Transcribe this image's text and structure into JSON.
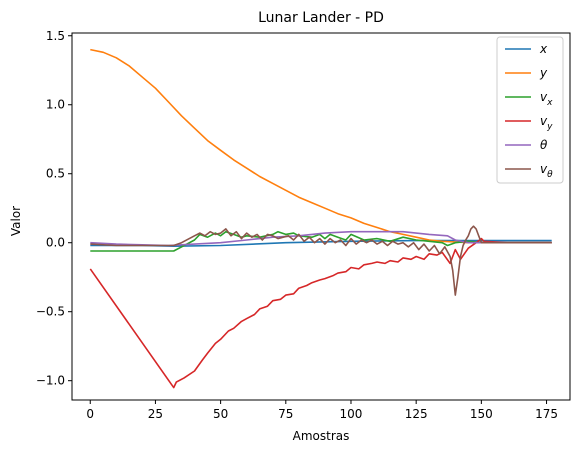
{
  "chart_data": {
    "type": "line",
    "title": "Lunar Lander - PD",
    "xlabel": "Amostras",
    "ylabel": "Valor",
    "xlim": [
      -7,
      184
    ],
    "ylim": [
      -1.14,
      1.52
    ],
    "xticks": [
      0,
      25,
      50,
      75,
      100,
      125,
      150,
      175
    ],
    "yticks": [
      -1.0,
      -0.5,
      0.0,
      0.5,
      1.0,
      1.5
    ],
    "xtick_labels": [
      "0",
      "25",
      "50",
      "75",
      "100",
      "125",
      "150",
      "175"
    ],
    "ytick_labels": [
      "−1.0",
      "−0.5",
      "0.0",
      "0.5",
      "1.0",
      "1.5"
    ],
    "grid": false,
    "legend_position": "top-right",
    "series": [
      {
        "name": "x",
        "color": "#1f77b4",
        "x": [
          0,
          10,
          20,
          32,
          50,
          75,
          100,
          125,
          150,
          177
        ],
        "y": [
          -0.02,
          -0.02,
          -0.02,
          -0.025,
          -0.02,
          0.0,
          0.01,
          0.015,
          0.015,
          0.015
        ]
      },
      {
        "name": "y",
        "color": "#ff7f0e",
        "x": [
          0,
          5,
          10,
          15,
          20,
          25,
          30,
          35,
          40,
          45,
          50,
          55,
          60,
          65,
          70,
          75,
          80,
          85,
          90,
          95,
          100,
          105,
          110,
          115,
          120,
          125,
          130,
          135,
          140,
          145,
          150,
          160,
          170,
          177
        ],
        "y": [
          1.4,
          1.38,
          1.34,
          1.28,
          1.2,
          1.12,
          1.02,
          0.92,
          0.83,
          0.74,
          0.67,
          0.6,
          0.54,
          0.48,
          0.43,
          0.38,
          0.33,
          0.29,
          0.25,
          0.21,
          0.18,
          0.14,
          0.11,
          0.08,
          0.06,
          0.04,
          0.02,
          0.01,
          0.005,
          0.0,
          0.0,
          0.0,
          0.0,
          0.0
        ]
      },
      {
        "name": "v_x",
        "color": "#2ca02c",
        "x": [
          0,
          10,
          20,
          32,
          35,
          40,
          42,
          45,
          48,
          50,
          52,
          55,
          58,
          60,
          65,
          70,
          72,
          75,
          78,
          80,
          85,
          88,
          90,
          92,
          95,
          98,
          100,
          105,
          110,
          115,
          120,
          125,
          130,
          135,
          137,
          140,
          145,
          150,
          155,
          160,
          170,
          177
        ],
        "y": [
          -0.06,
          -0.06,
          -0.06,
          -0.06,
          -0.03,
          0.02,
          0.06,
          0.04,
          0.07,
          0.05,
          0.08,
          0.06,
          0.04,
          0.05,
          0.04,
          0.06,
          0.08,
          0.06,
          0.07,
          0.05,
          0.04,
          0.06,
          0.03,
          0.06,
          0.04,
          0.02,
          0.06,
          0.02,
          0.03,
          0.01,
          0.04,
          0.02,
          0.01,
          0.0,
          -0.02,
          0.0,
          0.01,
          0.0,
          0.0,
          0.0,
          0.0,
          0.0
        ]
      },
      {
        "name": "v_y",
        "color": "#d62728",
        "x": [
          0,
          32,
          33,
          36,
          40,
          43,
          45,
          48,
          50,
          53,
          55,
          58,
          60,
          63,
          65,
          68,
          70,
          73,
          75,
          78,
          80,
          83,
          85,
          88,
          90,
          93,
          95,
          98,
          100,
          103,
          105,
          108,
          110,
          113,
          115,
          118,
          120,
          123,
          125,
          128,
          130,
          133,
          135,
          138,
          140,
          142,
          145,
          148,
          150,
          151,
          160,
          177
        ],
        "y": [
          -0.19,
          -1.05,
          -1.01,
          -0.98,
          -0.93,
          -0.85,
          -0.8,
          -0.73,
          -0.7,
          -0.64,
          -0.62,
          -0.57,
          -0.55,
          -0.52,
          -0.48,
          -0.46,
          -0.42,
          -0.41,
          -0.38,
          -0.37,
          -0.33,
          -0.31,
          -0.29,
          -0.27,
          -0.26,
          -0.24,
          -0.22,
          -0.21,
          -0.18,
          -0.19,
          -0.16,
          -0.15,
          -0.14,
          -0.15,
          -0.13,
          -0.14,
          -0.11,
          -0.12,
          -0.1,
          -0.12,
          -0.08,
          -0.09,
          -0.07,
          -0.15,
          -0.05,
          -0.12,
          -0.04,
          0.0,
          0.03,
          0.01,
          0.0,
          0.0
        ]
      },
      {
        "name": "θ",
        "color": "#9467bd",
        "x": [
          0,
          10,
          20,
          30,
          40,
          50,
          60,
          70,
          80,
          90,
          100,
          110,
          120,
          130,
          137,
          140,
          145,
          150,
          160,
          177
        ],
        "y": [
          0.0,
          -0.01,
          -0.015,
          -0.02,
          -0.01,
          0.0,
          0.02,
          0.04,
          0.05,
          0.07,
          0.08,
          0.08,
          0.08,
          0.06,
          0.05,
          0.02,
          0.0,
          0.0,
          0.0,
          0.0
        ]
      },
      {
        "name": "v_θ",
        "color": "#8c564b",
        "x": [
          0,
          10,
          20,
          32,
          35,
          38,
          40,
          42,
          44,
          46,
          48,
          50,
          52,
          54,
          56,
          58,
          60,
          62,
          64,
          66,
          68,
          70,
          72,
          74,
          76,
          78,
          80,
          82,
          84,
          86,
          88,
          90,
          92,
          94,
          96,
          98,
          100,
          102,
          104,
          106,
          108,
          110,
          112,
          114,
          116,
          118,
          120,
          122,
          124,
          126,
          128,
          130,
          132,
          134,
          136,
          138,
          139,
          140,
          141,
          142,
          143,
          144,
          145,
          146,
          147,
          148,
          149,
          150,
          151,
          160,
          177
        ],
        "y": [
          -0.01,
          -0.02,
          -0.02,
          -0.02,
          0.0,
          0.03,
          0.05,
          0.07,
          0.05,
          0.08,
          0.06,
          0.07,
          0.1,
          0.05,
          0.08,
          0.03,
          0.07,
          0.04,
          0.06,
          0.02,
          0.06,
          0.05,
          0.03,
          0.04,
          0.05,
          0.02,
          0.06,
          0.01,
          0.04,
          0.0,
          0.03,
          -0.01,
          0.03,
          0.0,
          0.02,
          -0.02,
          0.03,
          -0.01,
          0.02,
          0.0,
          0.02,
          -0.01,
          0.01,
          -0.02,
          0.01,
          -0.01,
          0.0,
          -0.03,
          0.0,
          -0.05,
          -0.01,
          -0.06,
          -0.02,
          -0.08,
          -0.03,
          -0.1,
          -0.2,
          -0.38,
          -0.25,
          -0.1,
          -0.02,
          0.02,
          0.05,
          0.1,
          0.12,
          0.1,
          0.05,
          0.0,
          0.0,
          0.0,
          0.0
        ]
      }
    ]
  }
}
